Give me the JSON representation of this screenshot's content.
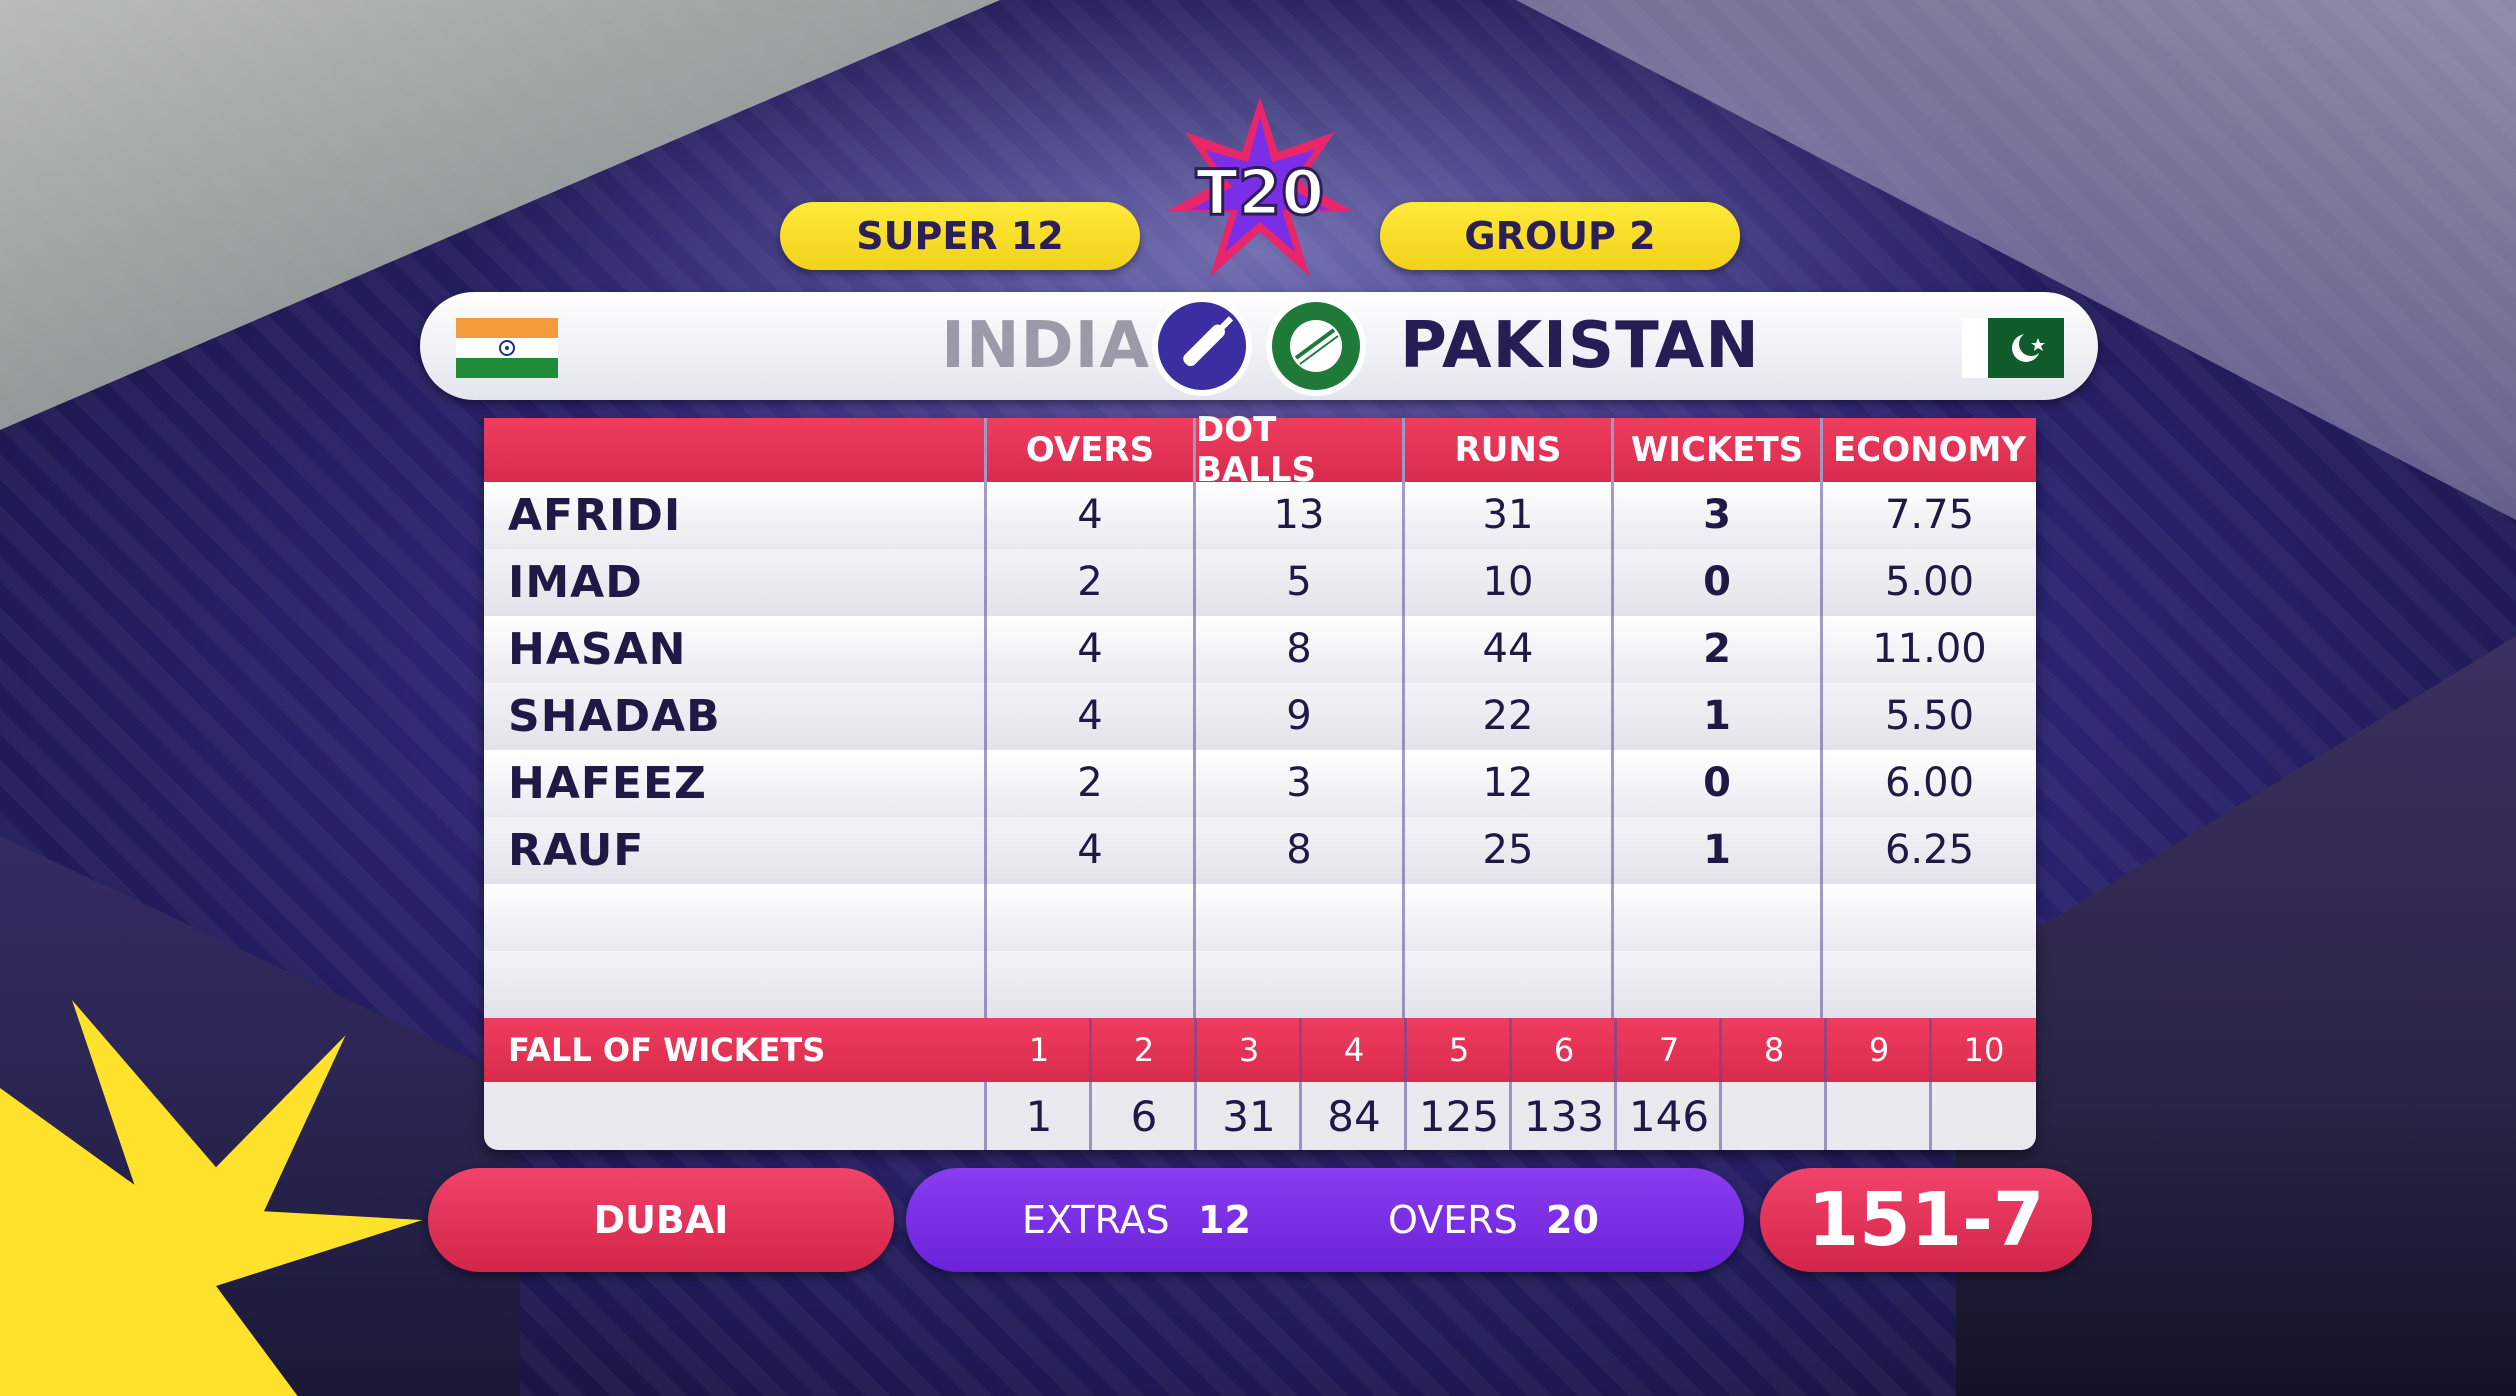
{
  "event": {
    "logo_text": "T20",
    "stage": "SUPER 12",
    "group": "GROUP 2"
  },
  "teams": {
    "batting": "INDIA",
    "bowling": "PAKISTAN"
  },
  "table": {
    "headers": [
      "OVERS",
      "DOT BALLS",
      "RUNS",
      "WICKETS",
      "ECONOMY"
    ],
    "rows": [
      {
        "name": "AFRIDI",
        "overs": "4",
        "dot_balls": "13",
        "runs": "31",
        "wickets": "3",
        "economy": "7.75"
      },
      {
        "name": "IMAD",
        "overs": "2",
        "dot_balls": "5",
        "runs": "10",
        "wickets": "0",
        "economy": "5.00"
      },
      {
        "name": "HASAN",
        "overs": "4",
        "dot_balls": "8",
        "runs": "44",
        "wickets": "2",
        "economy": "11.00"
      },
      {
        "name": "SHADAB",
        "overs": "4",
        "dot_balls": "9",
        "runs": "22",
        "wickets": "1",
        "economy": "5.50"
      },
      {
        "name": "HAFEEZ",
        "overs": "2",
        "dot_balls": "3",
        "runs": "12",
        "wickets": "0",
        "economy": "6.00"
      },
      {
        "name": "RAUF",
        "overs": "4",
        "dot_balls": "8",
        "runs": "25",
        "wickets": "1",
        "economy": "6.25"
      }
    ]
  },
  "fall_of_wickets": {
    "label": "FALL OF WICKETS",
    "numbers": [
      "1",
      "2",
      "3",
      "4",
      "5",
      "6",
      "7",
      "8",
      "9",
      "10"
    ],
    "scores": [
      "1",
      "6",
      "31",
      "84",
      "125",
      "133",
      "146",
      "",
      "",
      ""
    ]
  },
  "footer": {
    "venue": "DUBAI",
    "extras_label": "EXTRAS",
    "extras_value": "12",
    "overs_label": "OVERS",
    "overs_value": "20",
    "score": "151-7"
  },
  "colors": {
    "header_red": "#e2334f",
    "pill_yellow": "#f5d625",
    "navy_text": "#261d55",
    "purple_bar": "#7a2fe6"
  },
  "icons": [
    "cricket-bat-icon",
    "cricket-ball-icon",
    "india-flag-icon",
    "pakistan-flag-icon"
  ]
}
